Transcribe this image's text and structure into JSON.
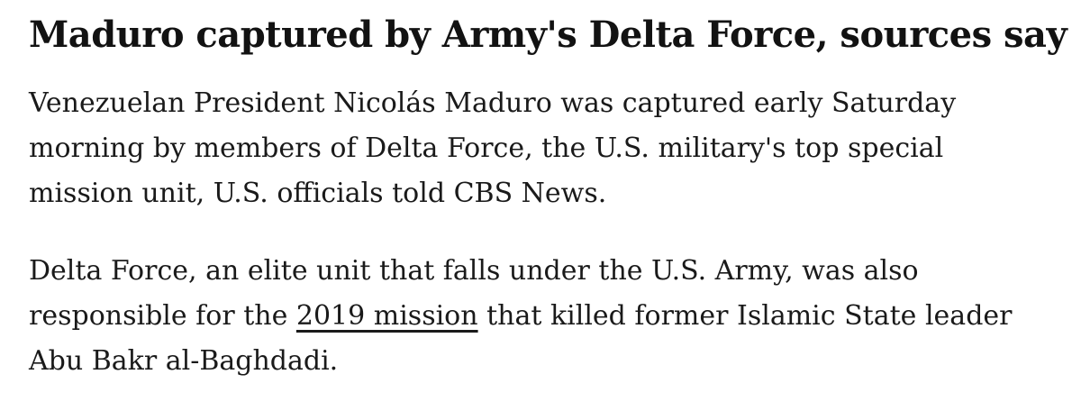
{
  "article": {
    "headline": "Maduro captured by Army's Delta Force, sources say",
    "paragraph1": {
      "line1": "Venezuelan President Nicolás Maduro was captured early Saturday",
      "line2": "morning by members of Delta Force, the U.S. military's top special",
      "line3": "mission unit, U.S. officials told CBS News."
    },
    "paragraph2": {
      "line1": "Delta Force, an elite unit that falls under the U.S. Army, was also",
      "line2_before_link": "responsible for the ",
      "link_text": "2019 mission",
      "line2_after_link": " that killed former Islamic State leader",
      "line3": "Abu Bakr al-Baghdadi."
    },
    "colors": {
      "background": "#ffffff",
      "headline_text": "#121212",
      "body_text": "#1a1a1a",
      "link_text": "#1a1a1a"
    }
  }
}
